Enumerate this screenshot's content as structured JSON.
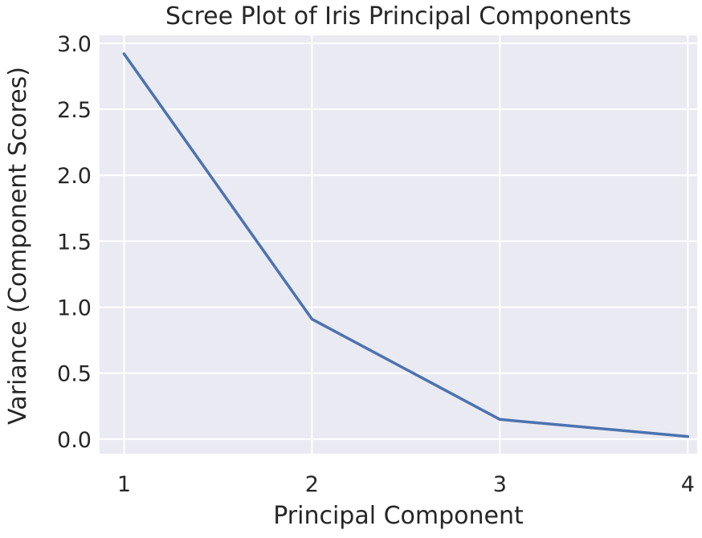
{
  "chart_data": {
    "type": "line",
    "title": "Scree Plot of Iris Principal Components",
    "xlabel": "Principal Component",
    "ylabel": "Variance (Component Scores)",
    "x": [
      1,
      2,
      3,
      4
    ],
    "x_tick_labels": [
      "1",
      "2",
      "3",
      "4"
    ],
    "xlim": [
      0.87,
      4.05
    ],
    "y_ticks": [
      0.0,
      0.5,
      1.0,
      1.5,
      2.0,
      2.5,
      3.0
    ],
    "y_tick_labels": [
      "0.0",
      "0.5",
      "1.0",
      "1.5",
      "2.0",
      "2.5",
      "3.0"
    ],
    "ylim": [
      -0.11,
      3.06
    ],
    "series": [
      {
        "values": [
          2.92,
          0.91,
          0.15,
          0.02
        ],
        "color": "#4c72b0"
      }
    ],
    "grid": true,
    "legend": "none",
    "colors": {
      "plot_background": "#eaeaf2",
      "grid": "#ffffff",
      "text": "#262626"
    }
  }
}
